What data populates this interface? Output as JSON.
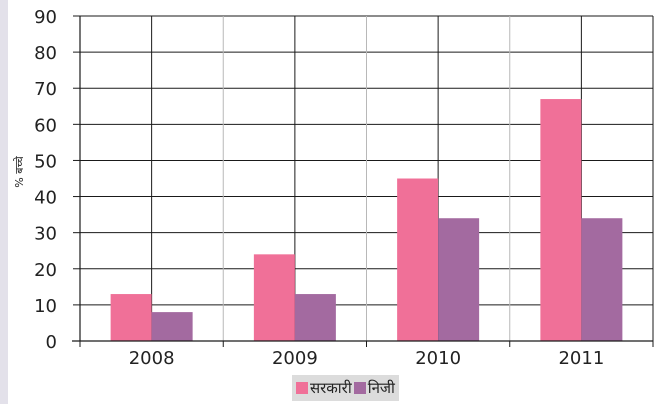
{
  "chart_data": {
    "type": "bar",
    "title": "",
    "xlabel": "",
    "ylabel": "% बच्चे",
    "categories": [
      "2008",
      "2009",
      "2010",
      "2011"
    ],
    "series": [
      {
        "name": "सरकारी",
        "color": "#f07098",
        "values": [
          13,
          24,
          45,
          67
        ]
      },
      {
        "name": "निजी",
        "color": "#a36aa0",
        "values": [
          8,
          13,
          34,
          34
        ]
      }
    ],
    "ylim": [
      0,
      90
    ],
    "yticks": [
      0,
      10,
      20,
      30,
      40,
      50,
      60,
      70,
      80,
      90
    ],
    "grid": true,
    "legend_position": "bottom"
  }
}
